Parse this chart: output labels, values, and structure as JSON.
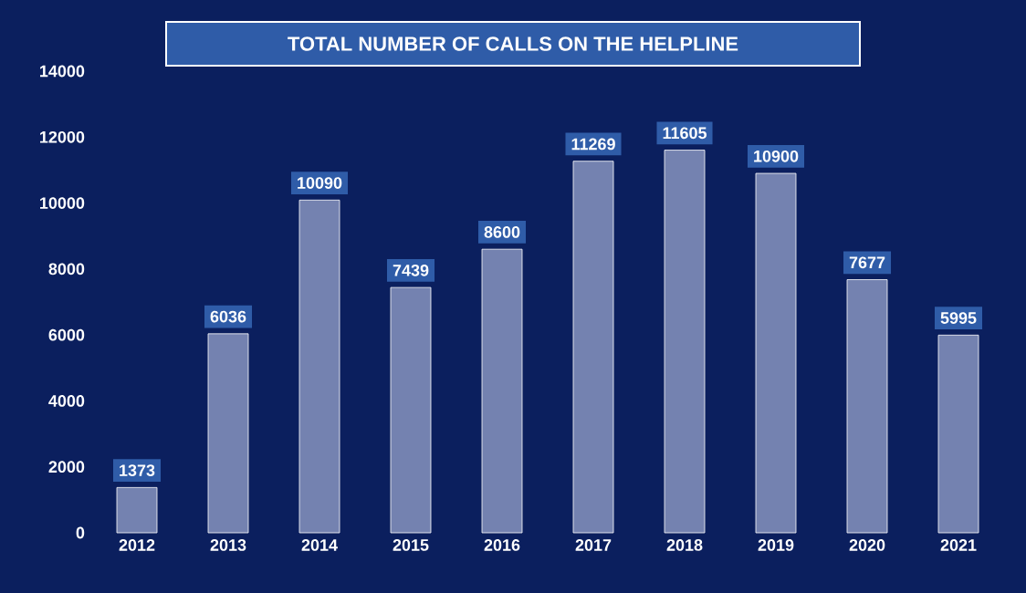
{
  "chart_data": {
    "type": "bar",
    "title": "TOTAL NUMBER OF CALLS ON THE HELPLINE",
    "categories": [
      "2012",
      "2013",
      "2014",
      "2015",
      "2016",
      "2017",
      "2018",
      "2019",
      "2020",
      "2021"
    ],
    "values": [
      1373,
      6036,
      10090,
      7439,
      8600,
      11269,
      11605,
      10900,
      7677,
      5995
    ],
    "color": "#7482b0",
    "ylim": [
      0,
      14000
    ],
    "yticks": [
      0,
      2000,
      4000,
      6000,
      8000,
      10000,
      12000,
      14000
    ],
    "data_labels": true,
    "grid": false
  }
}
